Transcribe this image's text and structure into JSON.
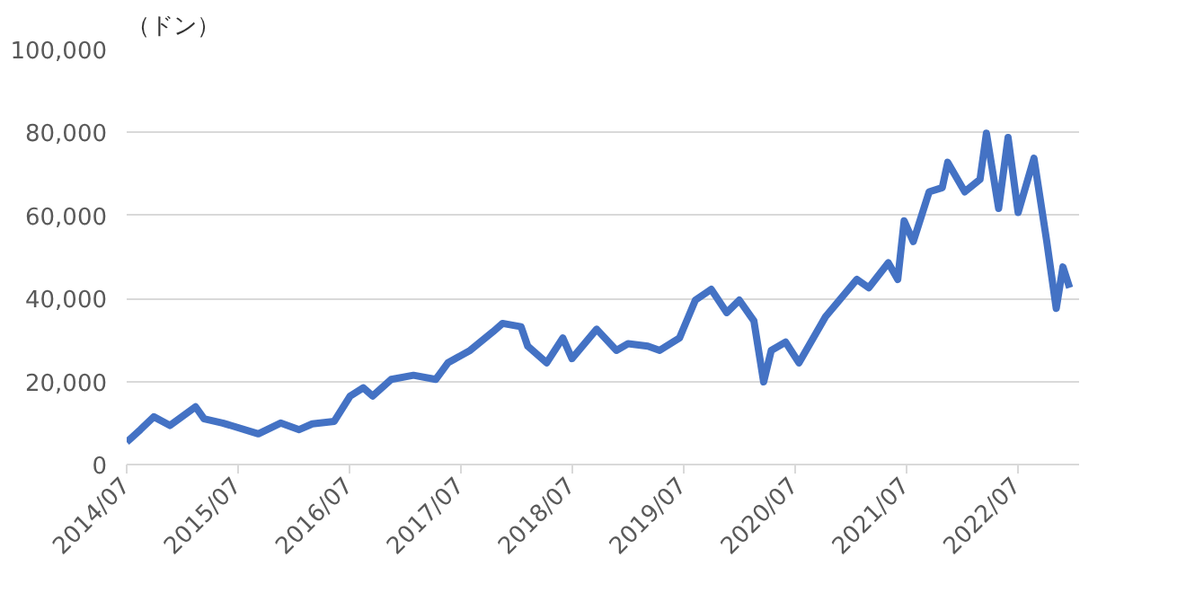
{
  "chart_data": {
    "type": "line",
    "ylabel": "（ドン）",
    "x": [
      "2014-07-01",
      "2014-08-15",
      "2014-09-28",
      "2014-11-20",
      "2015-02-12",
      "2015-03-12",
      "2015-05-12",
      "2015-09-06",
      "2015-11-18",
      "2016-01-18",
      "2016-03-01",
      "2016-05-12",
      "2016-07-03",
      "2016-08-15",
      "2016-09-15",
      "2016-11-15",
      "2017-01-27",
      "2017-04-10",
      "2017-05-20",
      "2017-08-01",
      "2017-10-15",
      "2017-11-15",
      "2018-01-15",
      "2018-02-06",
      "2018-04-09",
      "2018-06-01",
      "2018-07-01",
      "2018-09-20",
      "2018-11-24",
      "2019-01-01",
      "2019-03-07",
      "2019-04-15",
      "2019-06-19",
      "2019-08-10",
      "2019-10-01",
      "2019-11-21",
      "2020-01-01",
      "2020-02-18",
      "2020-03-21",
      "2020-04-15",
      "2020-06-01",
      "2020-07-15",
      "2020-10-10",
      "2021-01-21",
      "2021-03-01",
      "2021-05-04",
      "2021-06-04",
      "2021-06-25",
      "2021-07-25",
      "2021-09-15",
      "2021-10-28",
      "2021-11-15",
      "2022-01-10",
      "2022-03-01",
      "2022-03-22",
      "2022-05-01",
      "2022-06-01",
      "2022-07-04",
      "2022-08-25",
      "2022-10-06",
      "2022-11-06",
      "2022-11-28",
      "2022-12-20"
    ],
    "series": [
      {
        "color": "#4472c4",
        "values": [
          5400,
          8400,
          11500,
          9400,
          13900,
          11000,
          10000,
          7400,
          10000,
          8400,
          9800,
          10400,
          16500,
          18500,
          16500,
          20500,
          21500,
          20500,
          24500,
          27500,
          32000,
          34000,
          33200,
          28500,
          24500,
          30500,
          25500,
          32600,
          27500,
          29100,
          28500,
          27500,
          30500,
          39600,
          42200,
          36600,
          39600,
          34600,
          19900,
          27500,
          29500,
          24500,
          35600,
          44600,
          42600,
          48600,
          44600,
          58700,
          53700,
          65700,
          66700,
          72800,
          65700,
          68700,
          79800,
          61700,
          78800,
          60700,
          73800,
          53700,
          37600,
          47600,
          42600
        ]
      }
    ],
    "xlim": [
      "2014-07-01",
      "2023-01-20"
    ],
    "xticks": [
      {
        "value": "2014-07-01",
        "label": "2014/07"
      },
      {
        "value": "2015-07-01",
        "label": "2015/07"
      },
      {
        "value": "2016-07-01",
        "label": "2016/07"
      },
      {
        "value": "2017-07-01",
        "label": "2017/07"
      },
      {
        "value": "2018-07-01",
        "label": "2018/07"
      },
      {
        "value": "2019-07-01",
        "label": "2019/07"
      },
      {
        "value": "2020-07-01",
        "label": "2020/07"
      },
      {
        "value": "2021-07-01",
        "label": "2021/07"
      },
      {
        "value": "2022-07-01",
        "label": "2022/07"
      }
    ],
    "ylim": [
      0,
      100000
    ],
    "yticks": [
      {
        "value": 0,
        "label": "0"
      },
      {
        "value": 20000,
        "label": "20,000"
      },
      {
        "value": 40000,
        "label": "40,000"
      },
      {
        "value": 60000,
        "label": "60,000"
      },
      {
        "value": 80000,
        "label": "80,000"
      },
      {
        "value": 100000,
        "label": "100,000"
      }
    ],
    "grid": "y",
    "line_style": "solid"
  }
}
